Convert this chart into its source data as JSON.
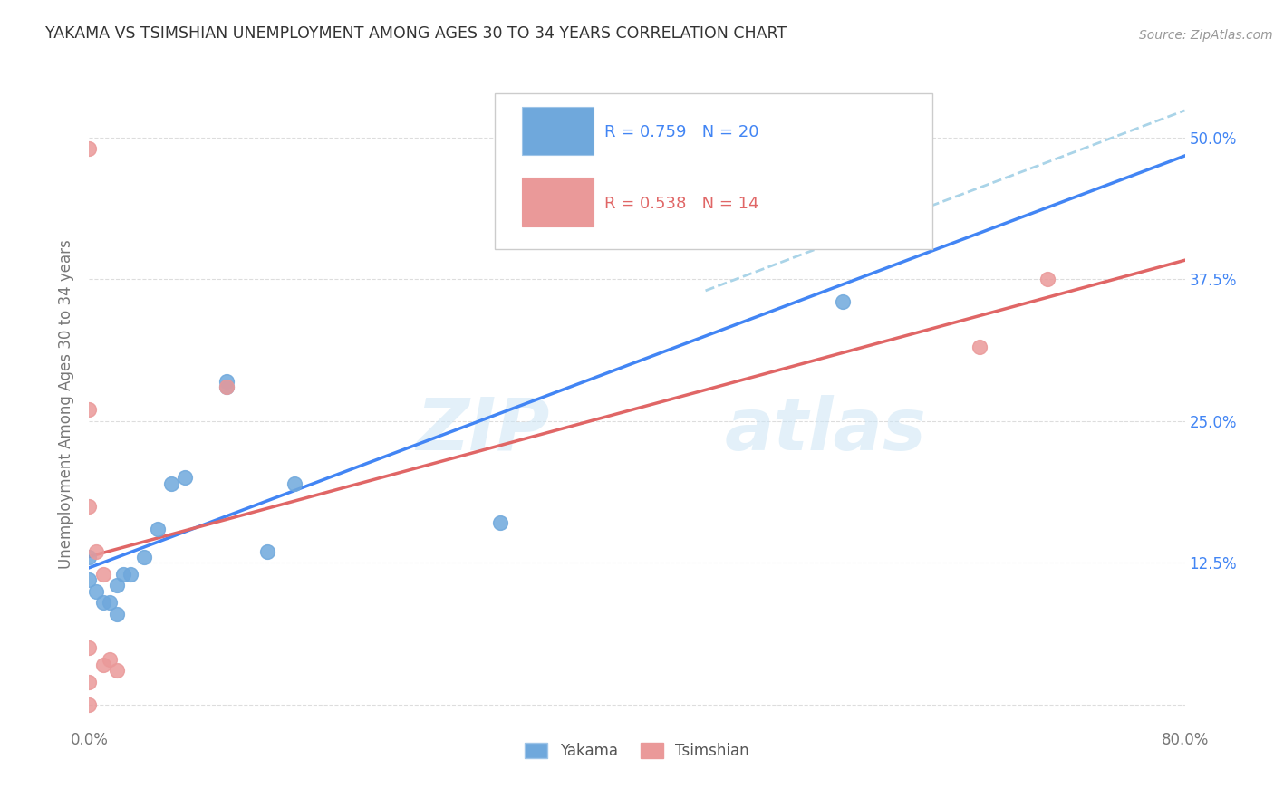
{
  "title": "YAKAMA VS TSIMSHIAN UNEMPLOYMENT AMONG AGES 30 TO 34 YEARS CORRELATION CHART",
  "source": "Source: ZipAtlas.com",
  "ylabel": "Unemployment Among Ages 30 to 34 years",
  "xlim": [
    0.0,
    0.8
  ],
  "ylim": [
    -0.02,
    0.55
  ],
  "x_tick_pos": [
    0.0,
    0.1,
    0.2,
    0.3,
    0.4,
    0.5,
    0.6,
    0.7,
    0.8
  ],
  "x_tick_labels": [
    "0.0%",
    "",
    "",
    "",
    "",
    "",
    "",
    "",
    "80.0%"
  ],
  "y_tick_positions": [
    0.0,
    0.125,
    0.25,
    0.375,
    0.5
  ],
  "y_tick_labels": [
    "",
    "12.5%",
    "25.0%",
    "37.5%",
    "50.0%"
  ],
  "yakama_color": "#6fa8dc",
  "tsimshian_color": "#ea9999",
  "yakama_line_color": "#4285f4",
  "tsimshian_line_color": "#e06666",
  "dashed_line_color": "#aad4e8",
  "R_yakama": 0.759,
  "N_yakama": 20,
  "R_tsimshian": 0.538,
  "N_tsimshian": 14,
  "yakama_x": [
    0.0,
    0.0,
    0.005,
    0.01,
    0.015,
    0.02,
    0.025,
    0.03,
    0.04,
    0.05,
    0.06,
    0.07,
    0.1,
    0.1,
    0.13,
    0.15,
    0.3,
    0.55,
    0.6,
    0.02
  ],
  "yakama_y": [
    0.11,
    0.13,
    0.1,
    0.09,
    0.09,
    0.08,
    0.115,
    0.115,
    0.13,
    0.155,
    0.195,
    0.2,
    0.28,
    0.285,
    0.135,
    0.195,
    0.16,
    0.355,
    0.42,
    0.105
  ],
  "tsimshian_x": [
    0.0,
    0.0,
    0.0,
    0.0,
    0.005,
    0.01,
    0.015,
    0.1,
    0.65,
    0.7,
    0.0,
    0.0,
    0.01,
    0.02
  ],
  "tsimshian_y": [
    0.0,
    0.02,
    0.175,
    0.26,
    0.135,
    0.035,
    0.04,
    0.28,
    0.315,
    0.375,
    0.49,
    0.05,
    0.115,
    0.03
  ],
  "legend_label_yakama": "Yakama",
  "legend_label_tsimshian": "Tsimshian",
  "background_color": "#ffffff",
  "grid_color": "#dddddd"
}
